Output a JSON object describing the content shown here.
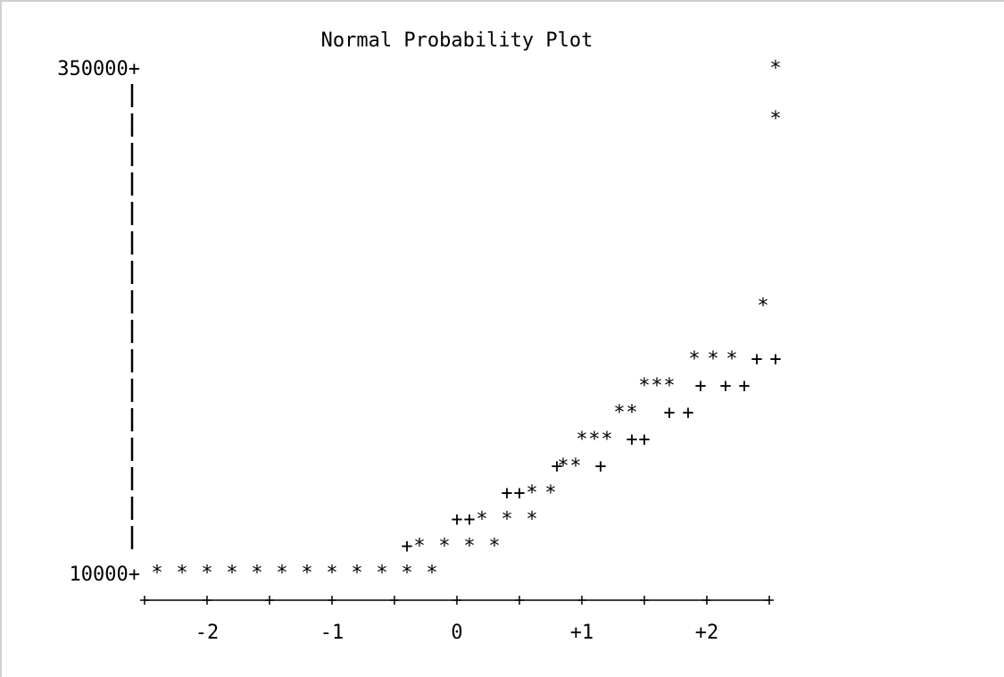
{
  "chart_data": {
    "type": "scatter",
    "title": "Normal Probability Plot",
    "xlabel": "",
    "ylabel": "",
    "y_tick_labels": [
      "350000+",
      "10000+"
    ],
    "y_tick_values": [
      350000,
      10000
    ],
    "ylim": [
      10000,
      350000
    ],
    "x_tick_labels": [
      "-2",
      "-1",
      "0",
      "+1",
      "+2"
    ],
    "x_tick_values": [
      -2,
      -1,
      0,
      1,
      2
    ],
    "xlim": [
      -2.5,
      2.5
    ],
    "series": [
      {
        "marker": "*",
        "points": [
          {
            "x": -2.4,
            "y": 10000
          },
          {
            "x": -2.2,
            "y": 10000
          },
          {
            "x": -2.0,
            "y": 10000
          },
          {
            "x": -1.8,
            "y": 10000
          },
          {
            "x": -1.6,
            "y": 10000
          },
          {
            "x": -1.4,
            "y": 10000
          },
          {
            "x": -1.2,
            "y": 10000
          },
          {
            "x": -1.0,
            "y": 10000
          },
          {
            "x": -0.8,
            "y": 10000
          },
          {
            "x": -0.6,
            "y": 10000
          },
          {
            "x": -0.4,
            "y": 10000
          },
          {
            "x": -0.2,
            "y": 10000
          },
          {
            "x": -0.3,
            "y": 28000
          },
          {
            "x": -0.1,
            "y": 28000
          },
          {
            "x": 0.1,
            "y": 28000
          },
          {
            "x": 0.3,
            "y": 28000
          },
          {
            "x": 0.2,
            "y": 46000
          },
          {
            "x": 0.4,
            "y": 46000
          },
          {
            "x": 0.6,
            "y": 46000
          },
          {
            "x": 0.6,
            "y": 64000
          },
          {
            "x": 0.75,
            "y": 64000
          },
          {
            "x": 0.85,
            "y": 82000
          },
          {
            "x": 0.95,
            "y": 82000
          },
          {
            "x": 1.0,
            "y": 100000
          },
          {
            "x": 1.1,
            "y": 100000
          },
          {
            "x": 1.2,
            "y": 100000
          },
          {
            "x": 1.3,
            "y": 118000
          },
          {
            "x": 1.4,
            "y": 118000
          },
          {
            "x": 1.5,
            "y": 136000
          },
          {
            "x": 1.6,
            "y": 136000
          },
          {
            "x": 1.7,
            "y": 136000
          },
          {
            "x": 1.9,
            "y": 154000
          },
          {
            "x": 2.05,
            "y": 154000
          },
          {
            "x": 2.2,
            "y": 154000
          },
          {
            "x": 2.45,
            "y": 190000
          },
          {
            "x": 2.55,
            "y": 316000
          },
          {
            "x": 2.55,
            "y": 350000
          }
        ]
      },
      {
        "marker": "+",
        "points": [
          {
            "x": -0.4,
            "y": 28000
          },
          {
            "x": 0.0,
            "y": 46000
          },
          {
            "x": 0.1,
            "y": 46000
          },
          {
            "x": 0.4,
            "y": 64000
          },
          {
            "x": 0.5,
            "y": 64000
          },
          {
            "x": 0.8,
            "y": 82000
          },
          {
            "x": 1.15,
            "y": 82000
          },
          {
            "x": 1.4,
            "y": 100000
          },
          {
            "x": 1.5,
            "y": 100000
          },
          {
            "x": 1.7,
            "y": 118000
          },
          {
            "x": 1.85,
            "y": 118000
          },
          {
            "x": 1.95,
            "y": 136000
          },
          {
            "x": 2.15,
            "y": 136000
          },
          {
            "x": 2.3,
            "y": 136000
          },
          {
            "x": 2.4,
            "y": 154000
          },
          {
            "x": 2.55,
            "y": 154000
          }
        ]
      }
    ],
    "grid": false,
    "legend": "none"
  }
}
